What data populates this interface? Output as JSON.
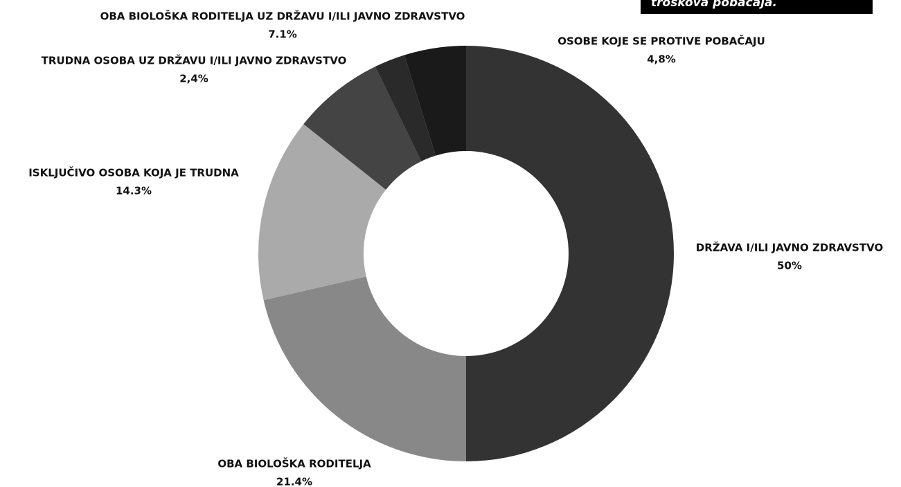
{
  "chart_data": {
    "type": "pie",
    "annotation": "troškova pobačaja.",
    "categories": [
      "DRŽAVA I/ILI JAVNO ZDRAVSTVO",
      "OBA BIOLOŠKA RODITELJA",
      "ISKLJUČIVO OSOBA KOJA JE TRUDNA",
      "OBA BIOLOŠKA RODITELJA UZ DRŽAVU I/ILI JAVNO ZDRAVSTVO",
      "TRUDNA OSOBA UZ DRŽAVU I/ILI JAVNO ZDRAVSTVO",
      "OSOBE KOJE SE PROTIVE POBAČAJU"
    ],
    "values": [
      50,
      21.4,
      14.3,
      7.1,
      2.4,
      4.8
    ],
    "value_labels": [
      "50%",
      "21.4%",
      "14.3%",
      "7.1%",
      "2,4%",
      "4,8%"
    ],
    "colors": [
      "#333333",
      "#888888",
      "#aaaaaa",
      "#444444",
      "#2a2a2a",
      "#1a1a1a"
    ],
    "donut": true
  }
}
